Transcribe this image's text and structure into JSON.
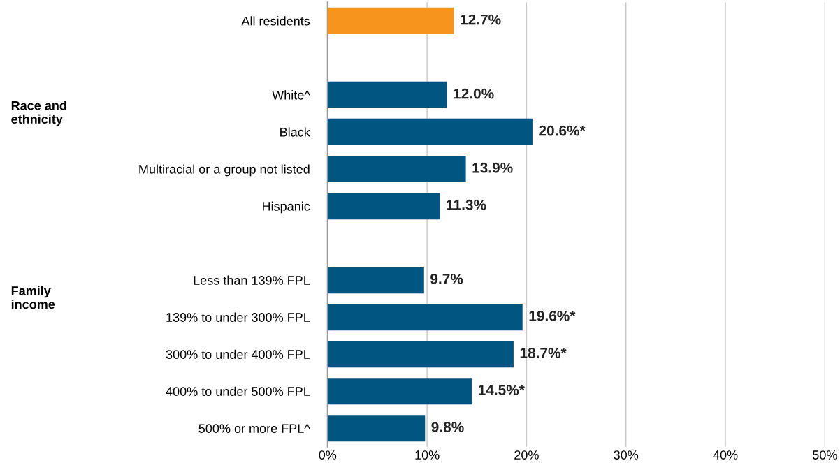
{
  "chart_data": {
    "type": "bar",
    "orientation": "horizontal",
    "categories": [
      "All residents",
      null,
      "White^",
      "Black",
      "Multiracial or a group not listed",
      "Hispanic",
      null,
      "Less than 139% FPL",
      "139% to under 300% FPL",
      "300% to under 400% FPL",
      "400% to under 500% FPL",
      "500% or more FPL^"
    ],
    "values": [
      12.7,
      null,
      12.0,
      20.6,
      13.9,
      11.3,
      null,
      9.7,
      19.6,
      18.7,
      14.5,
      9.8
    ],
    "value_labels": [
      "12.7%",
      null,
      "12.0%",
      "20.6%*",
      "13.9%",
      "11.3%",
      null,
      "9.7%",
      "19.6%*",
      "18.7%*",
      "14.5%*",
      "9.8%"
    ],
    "colors": [
      "#f7941d",
      null,
      "#005581",
      "#005581",
      "#005581",
      "#005581",
      null,
      "#005581",
      "#005581",
      "#005581",
      "#005581",
      "#005581"
    ],
    "xlim": [
      0,
      50
    ],
    "xticks": [
      {
        "value": 0,
        "label": "0%"
      },
      {
        "value": 10,
        "label": "10%"
      },
      {
        "value": 20,
        "label": "20%"
      },
      {
        "value": 30,
        "label": "30%"
      },
      {
        "value": 40,
        "label": "40%"
      },
      {
        "value": 50,
        "label": "50%"
      }
    ],
    "grid": "x",
    "annotations": [
      "Race and\nethnicity",
      "Family\nincome"
    ]
  }
}
